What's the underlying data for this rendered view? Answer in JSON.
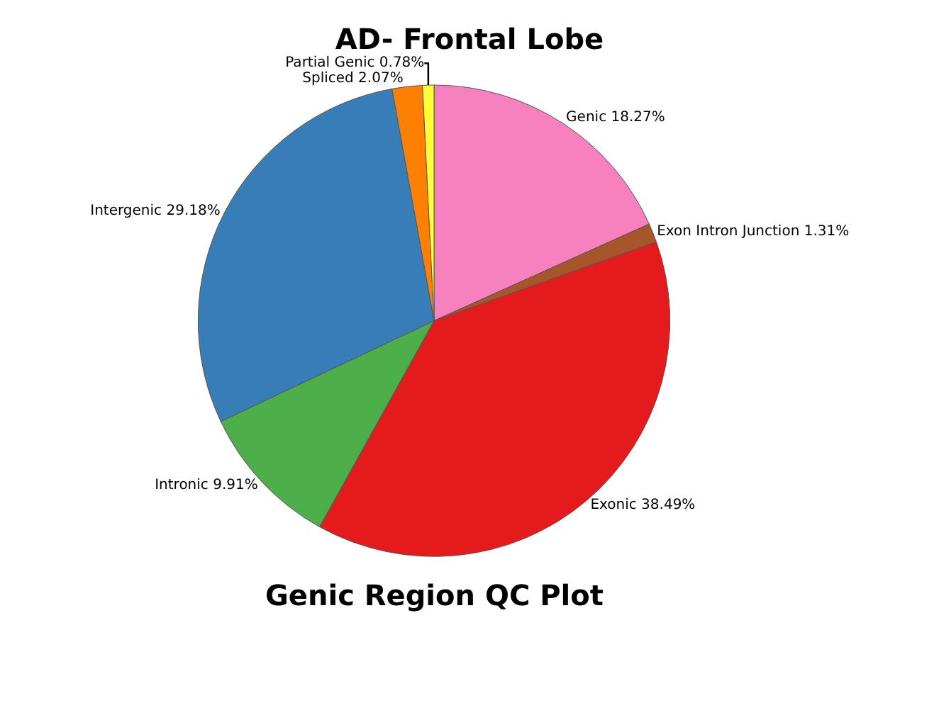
{
  "chart_data": {
    "type": "pie",
    "title": "AD- Frontal Lobe",
    "annotations": [
      "Genic Region QC Plot"
    ],
    "categories": [
      "Genic",
      "Exon Intron Junction",
      "Exonic",
      "Intronic",
      "Intergenic",
      "Spliced",
      "Partial Genic"
    ],
    "values": [
      18.27,
      1.31,
      38.49,
      9.91,
      29.18,
      2.07,
      0.78
    ],
    "value_labels": [
      "18.27%",
      "1.31%",
      "38.49%",
      "9.91%",
      "29.18%",
      "2.07%",
      "0.78%"
    ],
    "colors": [
      "#f781bf",
      "#a65628",
      "#e41a1c",
      "#4daf4a",
      "#377eb8",
      "#ff7f00",
      "#ffff33"
    ],
    "legend": false
  }
}
